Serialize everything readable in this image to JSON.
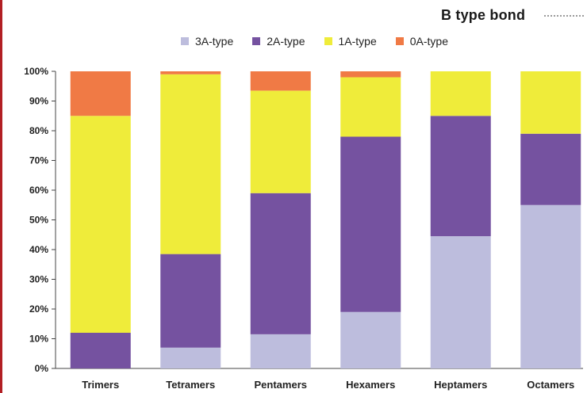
{
  "snippet_text": "B type bond",
  "chart_data": {
    "type": "bar",
    "stacked": true,
    "categories": [
      "Trimers",
      "Tetramers",
      "Pentamers",
      "Hexamers",
      "Heptamers",
      "Octamers"
    ],
    "series": [
      {
        "name": "3A-type",
        "color": "#bdbddd",
        "values": [
          0,
          7,
          11.5,
          19,
          44.5,
          55
        ]
      },
      {
        "name": "2A-type",
        "color": "#7552a0",
        "values": [
          12,
          31.5,
          47.5,
          59,
          40.5,
          24
        ]
      },
      {
        "name": "1A-type",
        "color": "#efec3a",
        "values": [
          73,
          60.5,
          34.5,
          20,
          15,
          21
        ]
      },
      {
        "name": "0A-type",
        "color": "#f07a45",
        "values": [
          15,
          1,
          6.5,
          2,
          0,
          0
        ]
      }
    ],
    "ylim": [
      0,
      100
    ],
    "yticks": [
      "0%",
      "10%",
      "20%",
      "30%",
      "40%",
      "50%",
      "60%",
      "70%",
      "80%",
      "90%",
      "100%"
    ],
    "legend_position": "top",
    "grid": false
  }
}
